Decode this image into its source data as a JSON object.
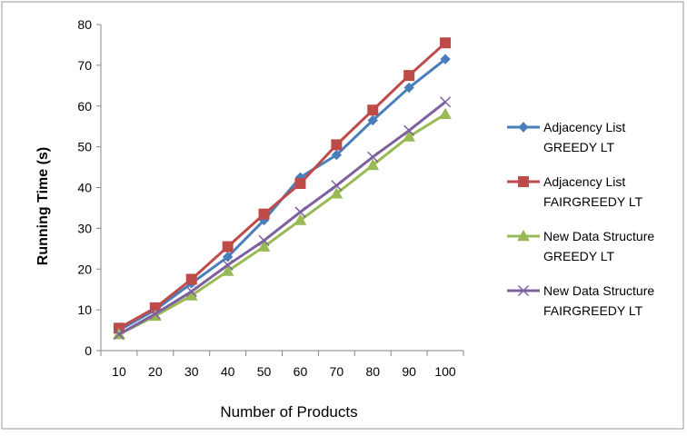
{
  "chart_data": {
    "type": "line",
    "title": "",
    "xlabel": "Number of Products",
    "ylabel": "Running Time (s)",
    "categories": [
      "10",
      "20",
      "30",
      "40",
      "50",
      "60",
      "70",
      "80",
      "90",
      "100"
    ],
    "ylim": [
      0,
      80
    ],
    "yticks": [
      "0",
      "10",
      "20",
      "30",
      "40",
      "50",
      "60",
      "70",
      "80"
    ],
    "grid": false,
    "legend_position": "right",
    "series": [
      {
        "name_lines": [
          "Adjacency List",
          "GREEDY LT"
        ],
        "color": "#4a7ebb",
        "marker": "diamond",
        "values": [
          5,
          10,
          16.5,
          23,
          32,
          42.5,
          48,
          56.5,
          64.5,
          71.5
        ]
      },
      {
        "name_lines": [
          "Adjacency List",
          "FAIRGREEDY LT"
        ],
        "color": "#be4b48",
        "marker": "square",
        "values": [
          5.5,
          10.5,
          17.5,
          25.5,
          33.5,
          41,
          50.5,
          59,
          67.5,
          75.5
        ]
      },
      {
        "name_lines": [
          "New Data Structure",
          "GREEDY LT"
        ],
        "color": "#98b954",
        "marker": "triangle",
        "values": [
          4,
          8.5,
          13.5,
          19.5,
          25.5,
          32,
          38.5,
          45.5,
          52.5,
          58
        ]
      },
      {
        "name_lines": [
          "New Data Structure",
          "FAIRGREEDY LT"
        ],
        "color": "#7d60a0",
        "marker": "x",
        "values": [
          4,
          9,
          14.5,
          21,
          27,
          34,
          40.5,
          47.5,
          54,
          61
        ]
      }
    ]
  }
}
